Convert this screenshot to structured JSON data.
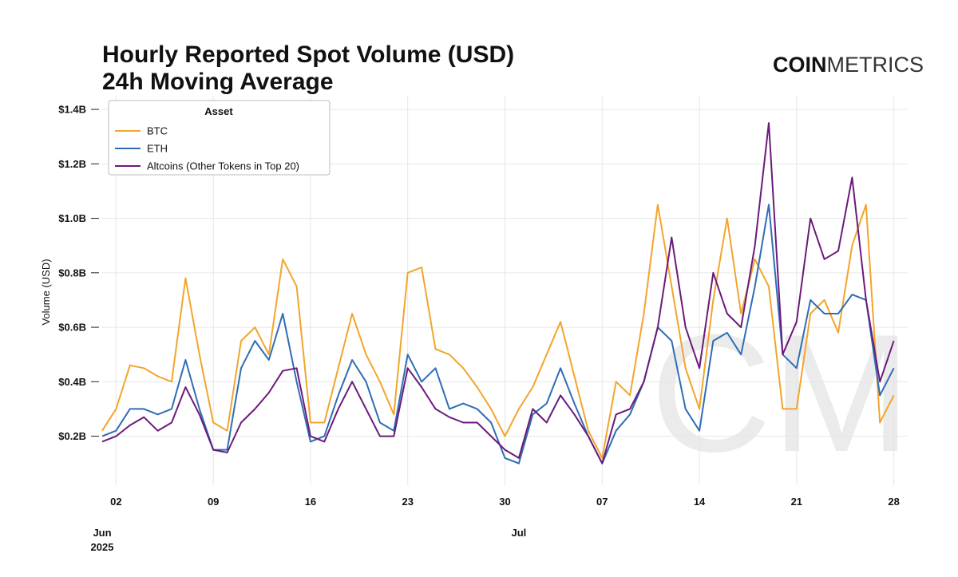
{
  "chart_data": {
    "type": "line",
    "title": "Hourly Reported Spot Volume (USD)",
    "subtitle": "24h Moving Average",
    "logo_bold": "COIN",
    "logo_light": "METRICS",
    "watermark": "CM",
    "y_label": "Volume (USD)",
    "legend_title": "Asset",
    "legend": "top-left",
    "grid": true,
    "x": [
      "2025-06-01",
      "2025-06-02",
      "2025-06-03",
      "2025-06-04",
      "2025-06-05",
      "2025-06-06",
      "2025-06-07",
      "2025-06-08",
      "2025-06-09",
      "2025-06-10",
      "2025-06-11",
      "2025-06-12",
      "2025-06-13",
      "2025-06-14",
      "2025-06-15",
      "2025-06-16",
      "2025-06-17",
      "2025-06-18",
      "2025-06-19",
      "2025-06-20",
      "2025-06-21",
      "2025-06-22",
      "2025-06-23",
      "2025-06-24",
      "2025-06-25",
      "2025-06-26",
      "2025-06-27",
      "2025-06-28",
      "2025-06-29",
      "2025-06-30",
      "2025-07-01",
      "2025-07-02",
      "2025-07-03",
      "2025-07-04",
      "2025-07-05",
      "2025-07-06",
      "2025-07-07",
      "2025-07-08",
      "2025-07-09",
      "2025-07-10",
      "2025-07-11",
      "2025-07-12",
      "2025-07-13",
      "2025-07-14",
      "2025-07-15",
      "2025-07-16",
      "2025-07-17",
      "2025-07-18",
      "2025-07-19",
      "2025-07-20",
      "2025-07-21",
      "2025-07-22",
      "2025-07-23",
      "2025-07-24",
      "2025-07-25",
      "2025-07-26",
      "2025-07-27",
      "2025-07-28"
    ],
    "xlim": [
      "2025-06-01",
      "2025-07-29"
    ],
    "xticks": [
      {
        "value": "2025-06-02",
        "label": "02"
      },
      {
        "value": "2025-06-09",
        "label": "09"
      },
      {
        "value": "2025-06-16",
        "label": "16"
      },
      {
        "value": "2025-06-23",
        "label": "23"
      },
      {
        "value": "2025-06-30",
        "label": "30"
      },
      {
        "value": "2025-07-07",
        "label": "07"
      },
      {
        "value": "2025-07-14",
        "label": "14"
      },
      {
        "value": "2025-07-21",
        "label": "21"
      },
      {
        "value": "2025-07-28",
        "label": "28"
      }
    ],
    "month_labels": [
      {
        "value": "2025-06-01",
        "label": "Jun",
        "year": "2025"
      },
      {
        "value": "2025-07-01",
        "label": "Jul"
      }
    ],
    "ylim": [
      0.02,
      1.45
    ],
    "yticks": [
      {
        "value": 0.2,
        "label": "$0.2B"
      },
      {
        "value": 0.4,
        "label": "$0.4B"
      },
      {
        "value": 0.6,
        "label": "$0.6B"
      },
      {
        "value": 0.8,
        "label": "$0.8B"
      },
      {
        "value": 1.0,
        "label": "$1.0B"
      },
      {
        "value": 1.2,
        "label": "$1.2B"
      },
      {
        "value": 1.4,
        "label": "$1.4B"
      }
    ],
    "series": [
      {
        "name": "BTC",
        "color": "#f2a52b",
        "values": [
          0.22,
          0.3,
          0.46,
          0.45,
          0.42,
          0.4,
          0.78,
          0.5,
          0.25,
          0.22,
          0.55,
          0.6,
          0.5,
          0.85,
          0.75,
          0.25,
          0.25,
          0.45,
          0.65,
          0.5,
          0.4,
          0.28,
          0.8,
          0.82,
          0.52,
          0.5,
          0.45,
          0.38,
          0.3,
          0.2,
          0.3,
          0.38,
          0.5,
          0.62,
          0.42,
          0.22,
          0.12,
          0.4,
          0.35,
          0.65,
          1.05,
          0.75,
          0.45,
          0.3,
          0.7,
          1.0,
          0.65,
          0.85,
          0.75,
          0.3,
          0.3,
          0.65,
          0.7,
          0.58,
          0.9,
          1.05,
          0.25,
          0.35
        ]
      },
      {
        "name": "ETH",
        "color": "#2f6db5",
        "values": [
          0.2,
          0.22,
          0.3,
          0.3,
          0.28,
          0.3,
          0.48,
          0.3,
          0.15,
          0.15,
          0.45,
          0.55,
          0.48,
          0.65,
          0.4,
          0.18,
          0.2,
          0.35,
          0.48,
          0.4,
          0.25,
          0.22,
          0.5,
          0.4,
          0.45,
          0.3,
          0.32,
          0.3,
          0.25,
          0.12,
          0.1,
          0.28,
          0.32,
          0.45,
          0.32,
          0.2,
          0.1,
          0.22,
          0.28,
          0.4,
          0.6,
          0.55,
          0.3,
          0.22,
          0.55,
          0.58,
          0.5,
          0.75,
          1.05,
          0.5,
          0.45,
          0.7,
          0.65,
          0.65,
          0.72,
          0.7,
          0.35,
          0.45
        ]
      },
      {
        "name": "Altcoins (Other Tokens in Top 20)",
        "color": "#6b1a7a",
        "values": [
          0.18,
          0.2,
          0.24,
          0.27,
          0.22,
          0.25,
          0.38,
          0.28,
          0.15,
          0.14,
          0.25,
          0.3,
          0.36,
          0.44,
          0.45,
          0.2,
          0.18,
          0.3,
          0.4,
          0.3,
          0.2,
          0.2,
          0.45,
          0.38,
          0.3,
          0.27,
          0.25,
          0.25,
          0.2,
          0.15,
          0.12,
          0.3,
          0.25,
          0.35,
          0.28,
          0.2,
          0.1,
          0.28,
          0.3,
          0.4,
          0.6,
          0.93,
          0.6,
          0.45,
          0.8,
          0.65,
          0.6,
          0.9,
          1.35,
          0.5,
          0.62,
          1.0,
          0.85,
          0.88,
          1.15,
          0.7,
          0.4,
          0.55
        ]
      }
    ]
  }
}
